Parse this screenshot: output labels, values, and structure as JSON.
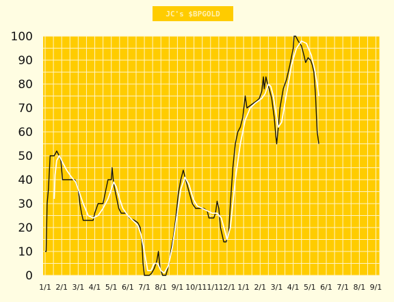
{
  "chart_data": {
    "type": "line",
    "title": "JC's $BPGOLD",
    "xlabel": "",
    "ylabel": "",
    "ylim": [
      0,
      100
    ],
    "yticks": [
      0,
      10,
      20,
      30,
      40,
      50,
      60,
      70,
      80,
      90,
      100
    ],
    "xticks": [
      "1/1",
      "2/1",
      "3/1",
      "4/1",
      "5/1",
      "6/1",
      "7/1",
      "8/1",
      "9/1",
      "10/1",
      "11/1",
      "12/1",
      "1/1",
      "2/1",
      "3/1",
      "4/1",
      "5/1",
      "6/1",
      "7/1",
      "8/1",
      "9/1"
    ],
    "grid": true,
    "colors": {
      "plot_background": "#ffcc00",
      "grid": "#fff5c8",
      "page_background": "#fffde2",
      "bp_line": "#111111",
      "average_line": "#ffffff"
    },
    "series": [
      {
        "values": [
          [
            0.0,
            10
          ],
          [
            0.06,
            10
          ],
          [
            0.12,
            30
          ],
          [
            0.2,
            36
          ],
          [
            0.3,
            50
          ],
          [
            0.55,
            50
          ],
          [
            0.7,
            52
          ],
          [
            0.85,
            50
          ],
          [
            0.95,
            48
          ],
          [
            1.05,
            40
          ],
          [
            1.3,
            40
          ],
          [
            1.6,
            40
          ],
          [
            1.8,
            40
          ],
          [
            1.92,
            38
          ],
          [
            2.0,
            36
          ],
          [
            2.1,
            30
          ],
          [
            2.2,
            26
          ],
          [
            2.3,
            23
          ],
          [
            2.6,
            23
          ],
          [
            2.9,
            23
          ],
          [
            3.0,
            26
          ],
          [
            3.2,
            30
          ],
          [
            3.5,
            30
          ],
          [
            3.65,
            35
          ],
          [
            3.8,
            40
          ],
          [
            4.0,
            40
          ],
          [
            4.05,
            45
          ],
          [
            4.15,
            38
          ],
          [
            4.3,
            33
          ],
          [
            4.45,
            28
          ],
          [
            4.6,
            26
          ],
          [
            4.9,
            26
          ],
          [
            5.1,
            24
          ],
          [
            5.4,
            23
          ],
          [
            5.6,
            22
          ],
          [
            5.75,
            20
          ],
          [
            5.85,
            14
          ],
          [
            5.92,
            5
          ],
          [
            6.0,
            0
          ],
          [
            6.3,
            0
          ],
          [
            6.45,
            1
          ],
          [
            6.6,
            3
          ],
          [
            6.75,
            6
          ],
          [
            6.85,
            10
          ],
          [
            6.95,
            3
          ],
          [
            7.1,
            0
          ],
          [
            7.3,
            0
          ],
          [
            7.5,
            5
          ],
          [
            7.6,
            10
          ],
          [
            7.75,
            16
          ],
          [
            7.9,
            24
          ],
          [
            8.05,
            34
          ],
          [
            8.2,
            40
          ],
          [
            8.35,
            44
          ],
          [
            8.5,
            40
          ],
          [
            8.7,
            35
          ],
          [
            8.9,
            30
          ],
          [
            9.1,
            28
          ],
          [
            9.4,
            28
          ],
          [
            9.6,
            28
          ],
          [
            9.8,
            27
          ],
          [
            9.9,
            24
          ],
          [
            10.2,
            24
          ],
          [
            10.3,
            26
          ],
          [
            10.4,
            31
          ],
          [
            10.5,
            28
          ],
          [
            10.6,
            20
          ],
          [
            10.7,
            17
          ],
          [
            10.8,
            14
          ],
          [
            10.95,
            14
          ],
          [
            11.1,
            18
          ],
          [
            11.2,
            30
          ],
          [
            11.35,
            45
          ],
          [
            11.5,
            55
          ],
          [
            11.65,
            60
          ],
          [
            11.8,
            62
          ],
          [
            11.95,
            66
          ],
          [
            12.05,
            72
          ],
          [
            12.1,
            75
          ],
          [
            12.2,
            70
          ],
          [
            12.4,
            71
          ],
          [
            12.6,
            72
          ],
          [
            12.8,
            73
          ],
          [
            12.95,
            74
          ],
          [
            13.1,
            77
          ],
          [
            13.2,
            83
          ],
          [
            13.25,
            78
          ],
          [
            13.35,
            83
          ],
          [
            13.45,
            80
          ],
          [
            13.55,
            78
          ],
          [
            13.7,
            74
          ],
          [
            13.85,
            66
          ],
          [
            13.95,
            58
          ],
          [
            14.0,
            55
          ],
          [
            14.1,
            62
          ],
          [
            14.2,
            70
          ],
          [
            14.4,
            78
          ],
          [
            14.6,
            82
          ],
          [
            14.8,
            88
          ],
          [
            15.0,
            95
          ],
          [
            15.05,
            100
          ],
          [
            15.15,
            100
          ],
          [
            15.3,
            98
          ],
          [
            15.5,
            96
          ],
          [
            15.65,
            92
          ],
          [
            15.75,
            89
          ],
          [
            15.9,
            91
          ],
          [
            16.05,
            90
          ],
          [
            16.15,
            88
          ],
          [
            16.25,
            85
          ],
          [
            16.35,
            75
          ],
          [
            16.45,
            60
          ],
          [
            16.55,
            55
          ]
        ]
      },
      {
        "values": [
          [
            0.55,
            32
          ],
          [
            0.6,
            42
          ],
          [
            0.7,
            48
          ],
          [
            0.85,
            50
          ],
          [
            1.0,
            48
          ],
          [
            1.3,
            44
          ],
          [
            1.6,
            41
          ],
          [
            1.85,
            39
          ],
          [
            2.0,
            36
          ],
          [
            2.3,
            30
          ],
          [
            2.6,
            25
          ],
          [
            2.9,
            24
          ],
          [
            3.2,
            25
          ],
          [
            3.5,
            28
          ],
          [
            3.8,
            32
          ],
          [
            4.0,
            36
          ],
          [
            4.15,
            39
          ],
          [
            4.3,
            37
          ],
          [
            4.5,
            32
          ],
          [
            4.7,
            28
          ],
          [
            5.0,
            25
          ],
          [
            5.3,
            23
          ],
          [
            5.6,
            21
          ],
          [
            5.8,
            17
          ],
          [
            6.0,
            10
          ],
          [
            6.2,
            2
          ],
          [
            6.4,
            2
          ],
          [
            6.6,
            5
          ],
          [
            6.8,
            5
          ],
          [
            7.0,
            2
          ],
          [
            7.2,
            1
          ],
          [
            7.45,
            4
          ],
          [
            7.7,
            12
          ],
          [
            7.95,
            24
          ],
          [
            8.2,
            36
          ],
          [
            8.45,
            41
          ],
          [
            8.7,
            38
          ],
          [
            8.95,
            32
          ],
          [
            9.2,
            29
          ],
          [
            9.5,
            28
          ],
          [
            9.8,
            27
          ],
          [
            10.1,
            26
          ],
          [
            10.4,
            26
          ],
          [
            10.65,
            24
          ],
          [
            10.85,
            19
          ],
          [
            11.0,
            15
          ],
          [
            11.2,
            20
          ],
          [
            11.5,
            40
          ],
          [
            11.8,
            55
          ],
          [
            12.1,
            65
          ],
          [
            12.4,
            70
          ],
          [
            12.7,
            72
          ],
          [
            12.9,
            73
          ],
          [
            13.1,
            74
          ],
          [
            13.3,
            76
          ],
          [
            13.5,
            80
          ],
          [
            13.65,
            79
          ],
          [
            13.8,
            75
          ],
          [
            13.95,
            68
          ],
          [
            14.1,
            62
          ],
          [
            14.3,
            64
          ],
          [
            14.6,
            76
          ],
          [
            14.9,
            88
          ],
          [
            15.2,
            95
          ],
          [
            15.5,
            98
          ],
          [
            15.8,
            97
          ],
          [
            16.1,
            92
          ],
          [
            16.3,
            86
          ],
          [
            16.45,
            80
          ],
          [
            16.55,
            75
          ]
        ]
      }
    ]
  }
}
